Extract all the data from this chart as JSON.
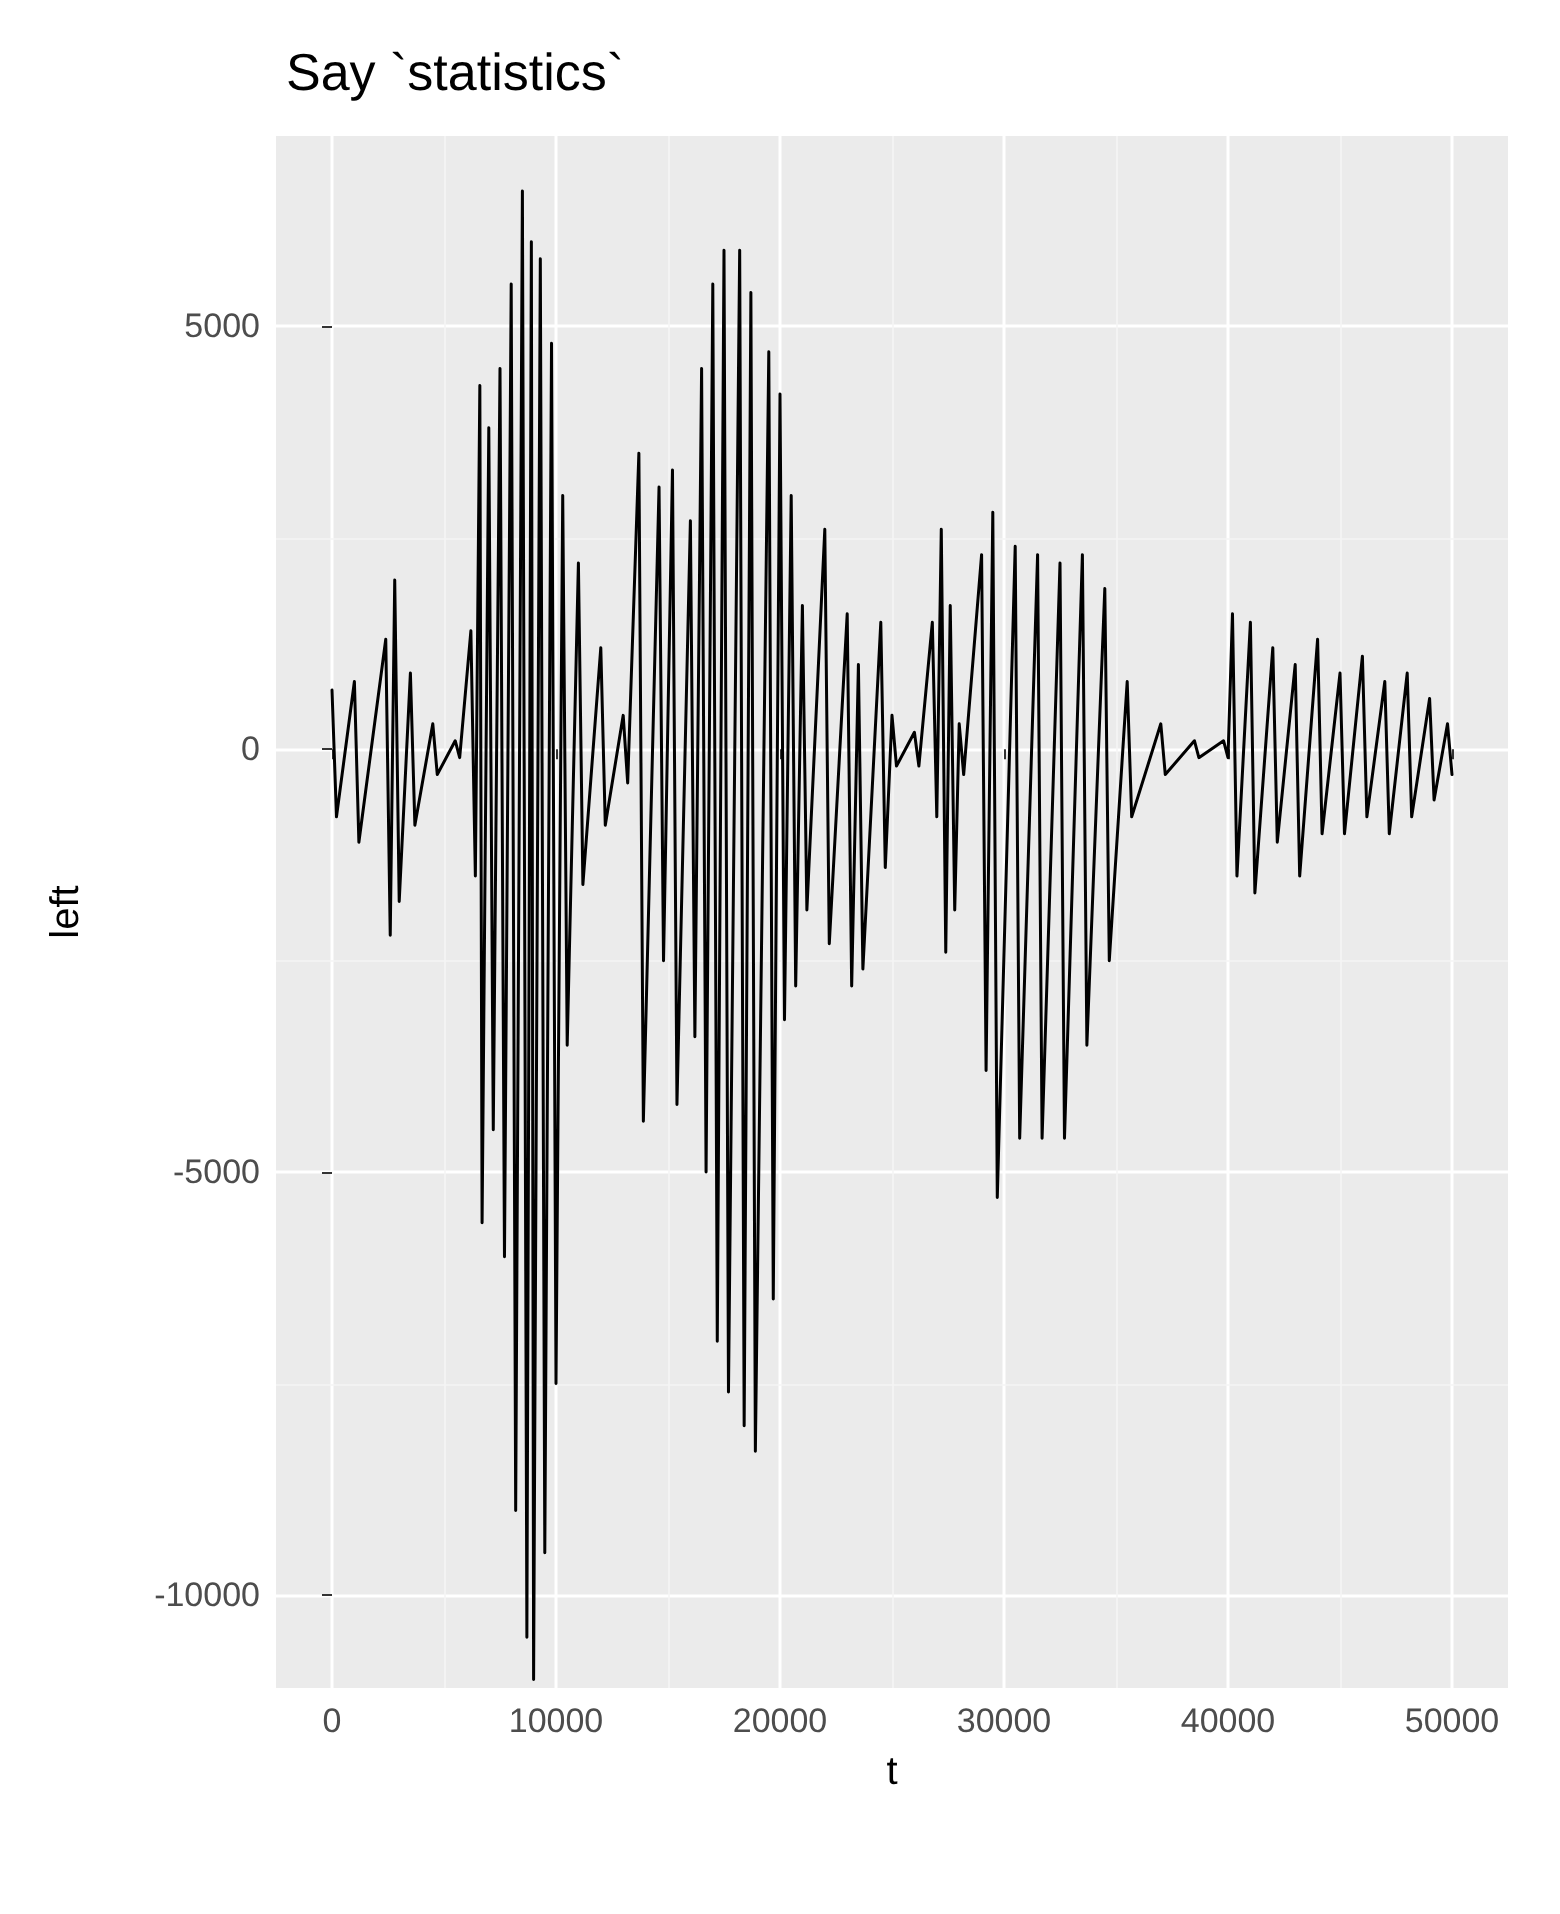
{
  "chart_data": {
    "type": "line",
    "title": "Say `statistics`",
    "xlabel": "t",
    "ylabel": "left",
    "x": [
      0,
      200,
      1000,
      1200,
      2400,
      2600,
      2800,
      3000,
      3500,
      3700,
      4500,
      4700,
      5500,
      5700,
      6200,
      6400,
      6600,
      6700,
      7000,
      7200,
      7500,
      7700,
      8000,
      8200,
      8500,
      8700,
      8900,
      9000,
      9300,
      9500,
      9800,
      10000,
      10300,
      10500,
      11000,
      11200,
      12000,
      12200,
      13000,
      13200,
      13700,
      13900,
      14600,
      14800,
      15200,
      15400,
      16000,
      16200,
      16500,
      16700,
      17000,
      17200,
      17500,
      17700,
      18200,
      18400,
      18700,
      18900,
      19500,
      19700,
      20000,
      20200,
      20500,
      20700,
      21000,
      21200,
      22000,
      22200,
      23000,
      23200,
      23500,
      23700,
      24500,
      24700,
      25000,
      25200,
      26000,
      26200,
      26800,
      27000,
      27200,
      27400,
      27600,
      27800,
      28000,
      28200,
      29000,
      29200,
      29500,
      29700,
      30500,
      30700,
      31500,
      31700,
      32500,
      32700,
      33500,
      33700,
      34500,
      34700,
      35500,
      35700,
      37000,
      37200,
      38500,
      38700,
      39800,
      40000,
      40200,
      40400,
      41000,
      41200,
      42000,
      42200,
      43000,
      43200,
      44000,
      44200,
      45000,
      45200,
      46000,
      46200,
      47000,
      47200,
      48000,
      48200,
      49000,
      49200,
      49800,
      50000
    ],
    "series": [
      {
        "color": "#000000",
        "values": [
          700,
          -800,
          800,
          -1100,
          1300,
          -2200,
          2000,
          -1800,
          900,
          -900,
          300,
          -300,
          100,
          -100,
          1400,
          -1500,
          4300,
          -5600,
          3800,
          -4500,
          4500,
          -6000,
          5500,
          -9000,
          6600,
          -10500,
          6000,
          -11000,
          5800,
          -9500,
          4800,
          -7500,
          3000,
          -3500,
          2200,
          -1600,
          1200,
          -900,
          400,
          -400,
          3500,
          -4400,
          3100,
          -2500,
          3300,
          -4200,
          2700,
          -3400,
          4500,
          -5000,
          5500,
          -7000,
          5900,
          -7600,
          5900,
          -8000,
          5400,
          -8300,
          4700,
          -6500,
          4200,
          -3200,
          3000,
          -2800,
          1700,
          -1900,
          2600,
          -2300,
          1600,
          -2800,
          1000,
          -2600,
          1500,
          -1400,
          400,
          -200,
          200,
          -200,
          1500,
          -800,
          2600,
          -2400,
          1700,
          -1900,
          300,
          -300,
          2300,
          -3800,
          2800,
          -5300,
          2400,
          -4600,
          2300,
          -4600,
          2200,
          -4600,
          2300,
          -3500,
          1900,
          -2500,
          800,
          -800,
          300,
          -300,
          100,
          -100,
          100,
          -100,
          1600,
          -1500,
          1500,
          -1700,
          1200,
          -1100,
          1000,
          -1500,
          1300,
          -1000,
          900,
          -1000,
          1100,
          -800,
          800,
          -1000,
          900,
          -800,
          600,
          -600,
          300,
          -300
        ]
      }
    ],
    "xlim": [
      -2500,
      52500
    ],
    "ylim": [
      -11100,
      7250
    ],
    "xticks": [
      0,
      {
        "value": 5000,
        "label": null
      },
      10000,
      {
        "value": 15000,
        "label": null
      },
      20000,
      {
        "value": 25000,
        "label": null
      },
      30000,
      {
        "value": 35000,
        "label": null
      },
      40000,
      {
        "value": 45000,
        "label": null
      },
      50000
    ],
    "yticks": [
      -10000,
      {
        "value": -7500,
        "label": null
      },
      -5000,
      {
        "value": -2500,
        "label": null
      },
      0,
      {
        "value": 2500,
        "label": null
      },
      5000
    ],
    "grid": true,
    "line_style": "solid",
    "marker": "none"
  }
}
